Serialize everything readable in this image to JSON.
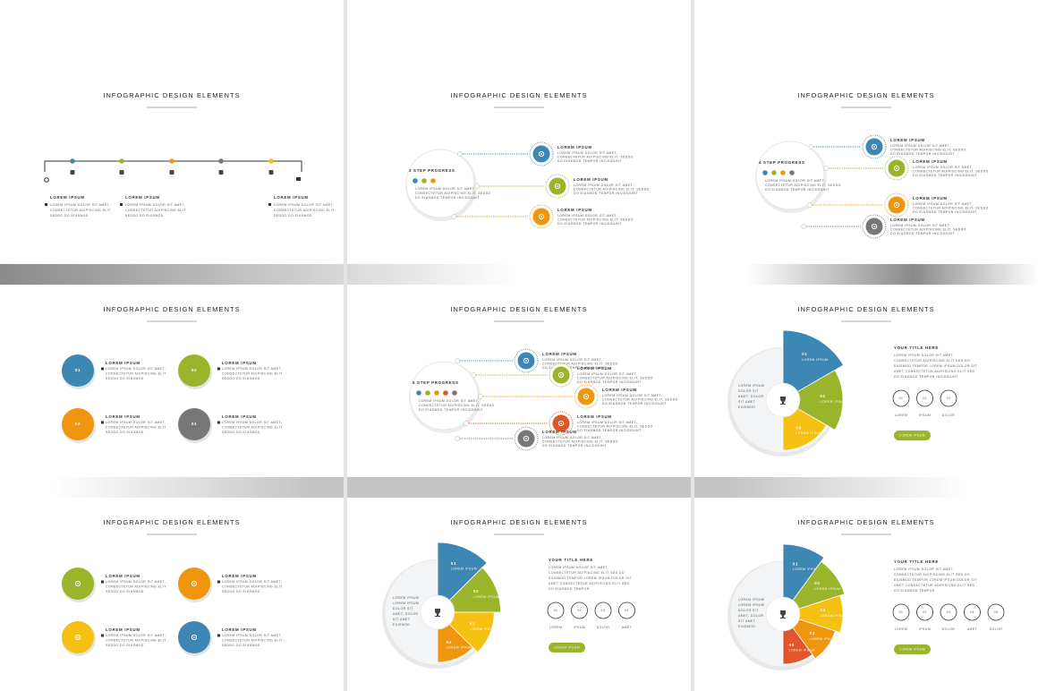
{
  "slides": [
    {
      "type": "timeline",
      "title": "INFOGRAPHIC DESIGN ELEMENTS",
      "dots": [
        "#3d87b5",
        "#9ab52b",
        "#f0960e",
        "#777777",
        "#f6c012"
      ],
      "items": [
        {
          "heading": "LOREM IPSUM",
          "lines": [
            "LOREM IPSUM DOLOR SIT AMET,",
            "CONSECTETUR ADIPISCING ELIT",
            "SEDDO DO EIUSMOD"
          ]
        },
        {
          "heading": "LOREM IPSUM",
          "lines": [
            "LOREM IPSUM DOLOR SIT AMET,",
            "CONSECTETUR ADIPISCING ELIT",
            "SEDDO DO EIUSMOD"
          ]
        },
        {
          "heading": "LOREM IPSUM",
          "lines": [
            "LOREM IPSUM DOLOR SIT AMET,",
            "CONSECTETUR ADIPISCING ELIT",
            "SEDDO DO EIUSMOD"
          ]
        }
      ]
    },
    {
      "type": "steps",
      "title": "INFOGRAPHIC DESIGN ELEMENTS",
      "label": "3 STEP PROGRESS",
      "intro": [
        "LOREM IPSUM DOLOR SIT AMET,",
        "CONSECTETUR ADIPISCING ELIT, SEDDO",
        "DO EIUSMOD TEMPOR INCIDIDUNT"
      ],
      "items": [
        {
          "color": "#3d87b5",
          "heading": "LOREM IPSUM",
          "lines": [
            "LOREM IPSUM DOLOR SIT AMET,",
            "CONSECTETUR ADIPISCING ELIT, SEDDO",
            "DO EIUSMOD TEMPOR INCIDIDUNT"
          ]
        },
        {
          "color": "#9ab52b",
          "heading": "LOREM IPSUM",
          "lines": [
            "LOREM IPSUM DOLOR SIT AMET,",
            "CONSECTETUR ADIPISCING ELIT, SEDDO",
            "DO EIUSMOD TEMPOR INCIDIDUNT"
          ]
        },
        {
          "color": "#f0960e",
          "heading": "LOREM IPSUM",
          "lines": [
            "LOREM IPSUM DOLOR SIT AMET,",
            "CONSECTETUR ADIPISCING ELIT, SEDDO",
            "DO EIUSMOD TEMPOR INCIDIDUNT"
          ]
        }
      ]
    },
    {
      "type": "steps",
      "title": "INFOGRAPHIC DESIGN ELEMENTS",
      "label": "4 STEP PROGRESS",
      "intro": [
        "LOREM IPSUM DOLOR SIT AMET,",
        "CONSECTETUR ADIPISCING ELIT, SEDDO",
        "DO EIUSMOD TEMPOR INCIDIDUNT"
      ],
      "items": [
        {
          "color": "#3d87b5",
          "heading": "LOREM IPSUM",
          "lines": [
            "LOREM IPSUM DOLOR SIT AMET,",
            "CONSECTETUR ADIPISCING ELIT, SEDDO",
            "DO EIUSMOD TEMPOR INCIDIDUNT"
          ]
        },
        {
          "color": "#9ab52b",
          "heading": "LOREM IPSUM",
          "lines": [
            "LOREM IPSUM DOLOR SIT AMET,",
            "CONSECTETUR ADIPISCING ELIT, SEDDO",
            "DO EIUSMOD TEMPOR INCIDIDUNT"
          ]
        },
        {
          "color": "#f0960e",
          "heading": "LOREM IPSUM",
          "lines": [
            "LOREM IPSUM DOLOR SIT AMET,",
            "CONSECTETUR ADIPISCING ELIT, SEDDO",
            "DO EIUSMOD TEMPOR INCIDIDUNT"
          ]
        },
        {
          "color": "#777777",
          "heading": "LOREM IPSUM",
          "lines": [
            "LOREM IPSUM DOLOR SIT AMET,",
            "CONSECTETUR ADIPISCING ELIT, SEDDO",
            "DO EIUSMOD TEMPOR INCIDIDUNT"
          ]
        }
      ]
    },
    {
      "type": "circles",
      "title": "INFOGRAPHIC DESIGN ELEMENTS",
      "items": [
        {
          "color": "#3d87b5",
          "label": "01",
          "heading": "LOREM IPSUM",
          "lines": [
            "LOREM IPSUM DOLOR SIT AMET,",
            "CONSECTETUR ADIPISCING ELIT",
            "SEDDO DO EIUSMOD"
          ]
        },
        {
          "color": "#9ab52b",
          "label": "02",
          "heading": "LOREM IPSUM",
          "lines": [
            "LOREM IPSUM DOLOR SIT AMET,",
            "CONSECTETUR ADIPISCING ELIT",
            "SEDDO DO EIUSMOD"
          ]
        },
        {
          "color": "#f0960e",
          "label": "03",
          "heading": "LOREM IPSUM",
          "lines": [
            "LOREM IPSUM DOLOR SIT AMET,",
            "CONSECTETUR ADIPISCING ELIT",
            "SEDDO DO EIUSMOD"
          ]
        },
        {
          "color": "#777777",
          "label": "04",
          "heading": "LOREM IPSUM",
          "lines": [
            "LOREM IPSUM DOLOR SIT AMET,",
            "CONSECTETUR ADIPISCING ELIT",
            "SEDDO DO EIUSMOD"
          ]
        }
      ]
    },
    {
      "type": "steps",
      "title": "INFOGRAPHIC DESIGN ELEMENTS",
      "label": "5 STEP PROGRESS",
      "intro": [
        "LOREM IPSUM DOLOR SIT AMET,",
        "CONSECTETUR ADIPISCING ELIT, SEDDO",
        "DO EIUSMOD TEMPOR INCIDIDUNT"
      ],
      "items": [
        {
          "color": "#3d87b5",
          "heading": "LOREM IPSUM",
          "lines": [
            "LOREM IPSUM DOLOR SIT AMET,",
            "CONSECTETUR ADIPISCING ELIT, SEDDO",
            "DO EIUSMOD TEMPOR INCIDIDUNT"
          ]
        },
        {
          "color": "#9ab52b",
          "heading": "LOREM IPSUM",
          "lines": [
            "LOREM IPSUM DOLOR SIT AMET,",
            "CONSECTETUR ADIPISCING ELIT, SEDDO",
            "DO EIUSMOD TEMPOR INCIDIDUNT"
          ]
        },
        {
          "color": "#f0960e",
          "heading": "LOREM IPSUM",
          "lines": [
            "LOREM IPSUM DOLOR SIT AMET,",
            "CONSECTETUR ADIPISCING ELIT, SEDDO",
            "DO EIUSMOD TEMPOR INCIDIDUNT"
          ]
        },
        {
          "color": "#e0562a",
          "heading": "LOREM IPSUM",
          "lines": [
            "LOREM IPSUM DOLOR SIT AMET,",
            "CONSECTETUR ADIPISCING ELIT, SEDDO",
            "DO EIUSMOD TEMPOR INCIDIDUNT"
          ]
        },
        {
          "color": "#777777",
          "heading": "LOREM IPSUM",
          "lines": [
            "LOREM IPSUM DOLOR SIT AMET,",
            "CONSECTETUR ADIPISCING ELIT, SEDDO",
            "DO EIUSMOD TEMPOR INCIDIDUNT"
          ]
        }
      ]
    },
    {
      "type": "pie",
      "title": "INFOGRAPHIC DESIGN ELEMENTS",
      "left": [
        "LOREM IPSUM",
        "DOLOR SIT",
        "AMET, DOLOR",
        "SIT AMET",
        "EIUSMOD"
      ],
      "segments": [
        {
          "color": "#3d87b5",
          "label": "01",
          "text": "LOREM IPSUM"
        },
        {
          "color": "#9ab52b",
          "label": "02",
          "text": "LOREM IPSUM"
        },
        {
          "color": "#f6c012",
          "label": "03",
          "text": "LOREM IPSUM"
        }
      ],
      "heading": "YOUR TITLE HERE",
      "body": [
        "LOREM IPSUM DOLOR SIT AMET,",
        "CONSECTETUR ADIPISCING ELIT SED DO",
        "EIUSMOD TEMPOR LOREM IPSUM DOLOR SIT",
        "AMET CONSECTETUR ADIPISCING ELIT SED",
        "DO EIUSMOD TEMPOR INCIDIDUNT"
      ],
      "options": [
        {
          "label": "01",
          "caption": "LOREM"
        },
        {
          "label": "02",
          "caption": "IPSUM"
        },
        {
          "label": "03",
          "caption": "DOLOR"
        }
      ],
      "button": "LOREM IPSUM"
    },
    {
      "type": "circles",
      "title": "INFOGRAPHIC DESIGN ELEMENTS",
      "items": [
        {
          "color": "#9ab52b",
          "heading": "LOREM IPSUM",
          "lines": [
            "LOREM IPSUM DOLOR SIT AMET,",
            "CONSECTETUR ADIPISCING ELIT",
            "SEDDO DO EIUSMOD"
          ]
        },
        {
          "color": "#f0960e",
          "heading": "LOREM IPSUM",
          "lines": [
            "LOREM IPSUM DOLOR SIT AMET,",
            "CONSECTETUR ADIPISCING ELIT",
            "SEDDO DO EIUSMOD"
          ]
        },
        {
          "color": "#f6c012",
          "heading": "LOREM IPSUM",
          "lines": [
            "LOREM IPSUM DOLOR SIT AMET,",
            "CONSECTETUR ADIPISCING ELIT",
            "SEDDO DO EIUSMOD"
          ]
        },
        {
          "color": "#3d87b5",
          "heading": "LOREM IPSUM",
          "lines": [
            "LOREM IPSUM DOLOR SIT AMET,",
            "CONSECTETUR ADIPISCING ELIT",
            "SEDDO DO EIUSMOD"
          ]
        }
      ]
    },
    {
      "type": "pie",
      "title": "INFOGRAPHIC DESIGN ELEMENTS",
      "left": [
        "LOREM IPSUM",
        "LOREM IPSUM",
        "DOLOR SIT",
        "AMET, DOLOR",
        "SIT AMET",
        "EIUSMOD"
      ],
      "segments": [
        {
          "color": "#3d87b5",
          "label": "01",
          "text": "LOREM IPSUM"
        },
        {
          "color": "#9ab52b",
          "label": "02",
          "text": "LOREM IPSUM"
        },
        {
          "color": "#f6c012",
          "label": "03",
          "text": "LOREM IPSUM"
        },
        {
          "color": "#f0960e",
          "label": "04",
          "text": "LOREM IPSUM"
        }
      ],
      "heading": "YOUR TITLE HERE",
      "body": [
        "LOREM IPSUM DOLOR SIT AMET,",
        "CONSECTETUR ADIPISCING ELIT SED DO",
        "EIUSMOD TEMPOR LOREM IPSUM DOLOR SIT",
        "AMET CONSECTETUR ADIPISCING ELIT SED",
        "DO EIUSMOD TEMPOR"
      ],
      "options": [
        {
          "label": "01",
          "caption": "LOREM"
        },
        {
          "label": "02",
          "caption": "IPSUM"
        },
        {
          "label": "03",
          "caption": "DOLOR"
        },
        {
          "label": "04",
          "caption": "AMET"
        }
      ],
      "button": "LOREM IPSUM"
    },
    {
      "type": "pie",
      "title": "INFOGRAPHIC DESIGN ELEMENTS",
      "left": [
        "LOREM IPSUM",
        "LOREM IPSUM",
        "DOLOR SIT",
        "AMET, DOLOR",
        "SIT AMET",
        "EIUSMOD"
      ],
      "segments": [
        {
          "color": "#3d87b5",
          "label": "01",
          "text": "LOREM IPSUM"
        },
        {
          "color": "#9ab52b",
          "label": "02",
          "text": "LOREM IPSUM"
        },
        {
          "color": "#f6c012",
          "label": "03",
          "text": "LOREM IPSUM"
        },
        {
          "color": "#f0960e",
          "label": "04",
          "text": "LOREM IPSUM"
        },
        {
          "color": "#e0562a",
          "label": "05",
          "text": "LOREM IPSUM"
        }
      ],
      "heading": "YOUR TITLE HERE",
      "body": [
        "LOREM IPSUM DOLOR SIT AMET,",
        "CONSECTETUR ADIPISCING ELIT SED DO",
        "EIUSMOD TEMPOR LOREM IPSUM DOLOR SIT",
        "AMET CONSECTETUR ADIPISCING ELIT SED",
        "DO EIUSMOD TEMPOR"
      ],
      "options": [
        {
          "label": "01",
          "caption": "LOREM"
        },
        {
          "label": "02",
          "caption": "IPSUM"
        },
        {
          "label": "03",
          "caption": "DOLOR"
        },
        {
          "label": "04",
          "caption": "AMET"
        },
        {
          "label": "05",
          "caption": "DOLOR"
        }
      ],
      "button": "LOREM IPSUM"
    }
  ]
}
